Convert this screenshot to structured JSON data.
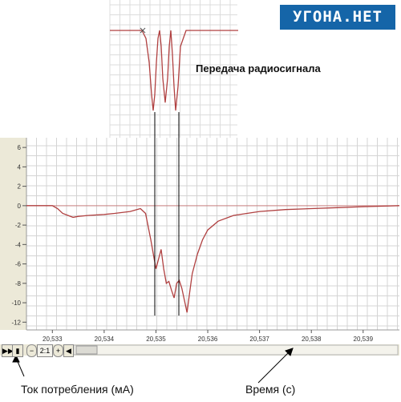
{
  "logo": {
    "text": "УГОНА.НЕТ"
  },
  "annotation": {
    "title": "Передача радиосигнала"
  },
  "captions": {
    "y_axis": "Ток потребления (мА)",
    "x_axis": "Время (с)"
  },
  "toolbar": {
    "zoom_label": "2:1"
  },
  "chart_data": [
    {
      "type": "line",
      "title": "",
      "xlabel": "Время (с)",
      "ylabel": "Ток потребления (мА)",
      "xlim": [
        20.5325,
        20.5397
      ],
      "ylim": [
        -12.8,
        7
      ],
      "x_ticks": [
        "20,533",
        "20,534",
        "20,535",
        "20,536",
        "20,537",
        "20,538",
        "20,539"
      ],
      "y_ticks": [
        "6",
        "4",
        "2",
        "0",
        "-2",
        "-4",
        "-6",
        "-8",
        "-10",
        "-12"
      ],
      "grid": true,
      "colors": {
        "trace": "#b04040",
        "zero_line": "#c98080",
        "grid": "#d4d4d4"
      },
      "series": [
        {
          "x": [
            20.5325,
            20.533,
            20.5331,
            20.5332,
            20.5333,
            20.5334,
            20.5335,
            20.5337,
            20.534,
            20.5342,
            20.5345,
            20.5347,
            20.5348,
            20.5349,
            20.53495,
            20.535,
            20.5351,
            20.53515,
            20.5352,
            20.53525,
            20.5353,
            20.53535,
            20.5354,
            20.53545,
            20.5355,
            20.5356,
            20.53565,
            20.5357,
            20.5358,
            20.5359,
            20.536,
            20.5362,
            20.5365,
            20.537,
            20.5375,
            20.538,
            20.5385,
            20.539,
            20.5397
          ],
          "y": [
            0,
            0,
            -0.3,
            -0.8,
            -1.0,
            -1.2,
            -1.1,
            -1.0,
            -0.9,
            -0.8,
            -0.6,
            -0.3,
            -0.8,
            -3.5,
            -5.0,
            -6.5,
            -4.5,
            -6.5,
            -8.0,
            -7.8,
            -8.7,
            -9.5,
            -8.0,
            -7.7,
            -8.5,
            -11.0,
            -9.0,
            -7.0,
            -5.0,
            -3.5,
            -2.5,
            -1.6,
            -1.0,
            -0.6,
            -0.4,
            -0.3,
            -0.2,
            -0.1,
            0
          ]
        }
      ]
    },
    {
      "type": "line",
      "title": "Передача радиосигнала",
      "xlabel": "",
      "ylabel": "",
      "grid": true,
      "colors": {
        "trace": "#b04040",
        "grid": "#dcdcdc"
      },
      "series": [
        {
          "x": [
            0,
            40,
            45,
            49,
            52,
            54,
            56,
            58,
            60,
            62,
            64,
            66,
            69,
            72,
            74,
            76,
            78,
            80,
            82,
            85,
            88,
            95,
            160
          ],
          "y": [
            0,
            0,
            -1,
            -4,
            -8,
            -10,
            -8,
            -4,
            -1,
            0,
            -2,
            -6,
            -9,
            -6,
            -2,
            0,
            -3,
            -7,
            -10,
            -7,
            -2,
            0,
            0
          ]
        }
      ]
    }
  ]
}
